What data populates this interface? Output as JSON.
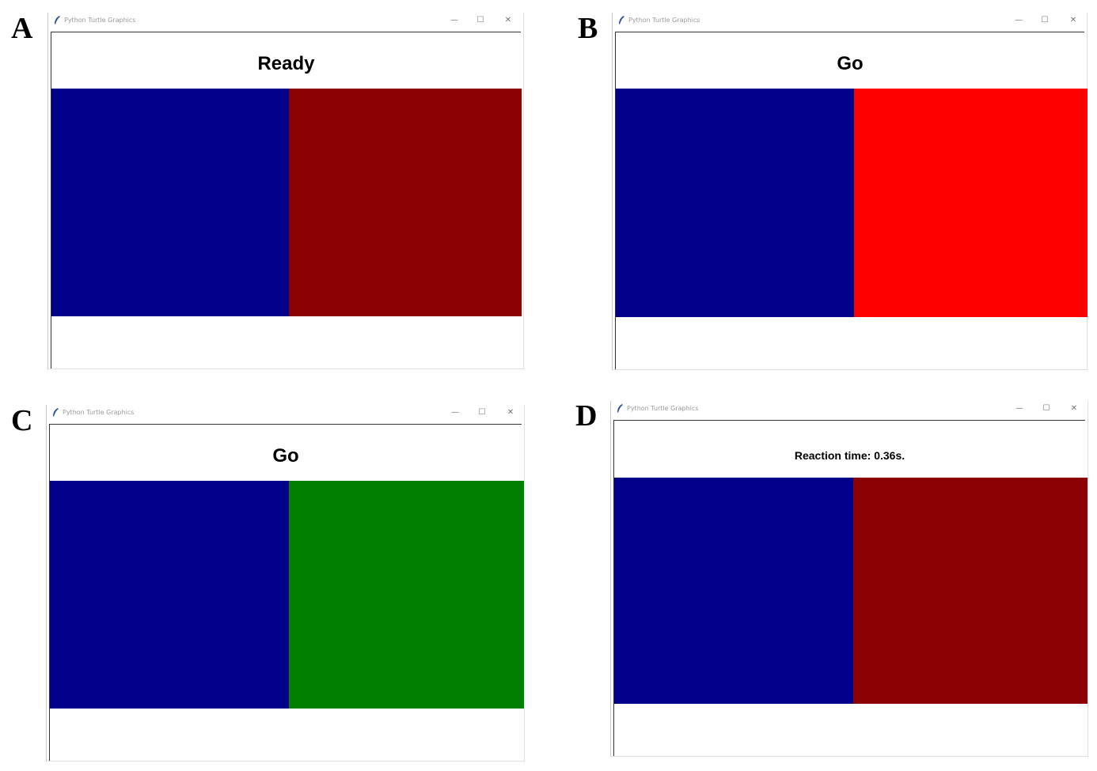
{
  "panels": [
    {
      "letter": "A",
      "window_title": "Python Turtle Graphics",
      "controls": {
        "minimize": "—",
        "maximize": "☐",
        "close": "✕"
      },
      "message": "Ready",
      "left_color": "#00008b",
      "right_color": "#8b0000"
    },
    {
      "letter": "B",
      "window_title": "Python Turtle Graphics",
      "controls": {
        "minimize": "—",
        "maximize": "☐",
        "close": "✕"
      },
      "message": "Go",
      "left_color": "#00008b",
      "right_color": "#ff0000"
    },
    {
      "letter": "C",
      "window_title": "Python Turtle Graphics",
      "controls": {
        "minimize": "—",
        "maximize": "☐",
        "close": "✕"
      },
      "message": "Go",
      "left_color": "#00008b",
      "right_color": "#008000"
    },
    {
      "letter": "D",
      "window_title": "Python Turtle Graphics",
      "controls": {
        "minimize": "—",
        "maximize": "☐",
        "close": "✕"
      },
      "message": "Reaction time: 0.36s.",
      "left_color": "#00008b",
      "right_color": "#8b0000"
    }
  ],
  "icons": {
    "title_icon": "python-feather-icon",
    "minimize": "minimize-icon",
    "maximize": "maximize-icon",
    "close": "close-icon"
  }
}
